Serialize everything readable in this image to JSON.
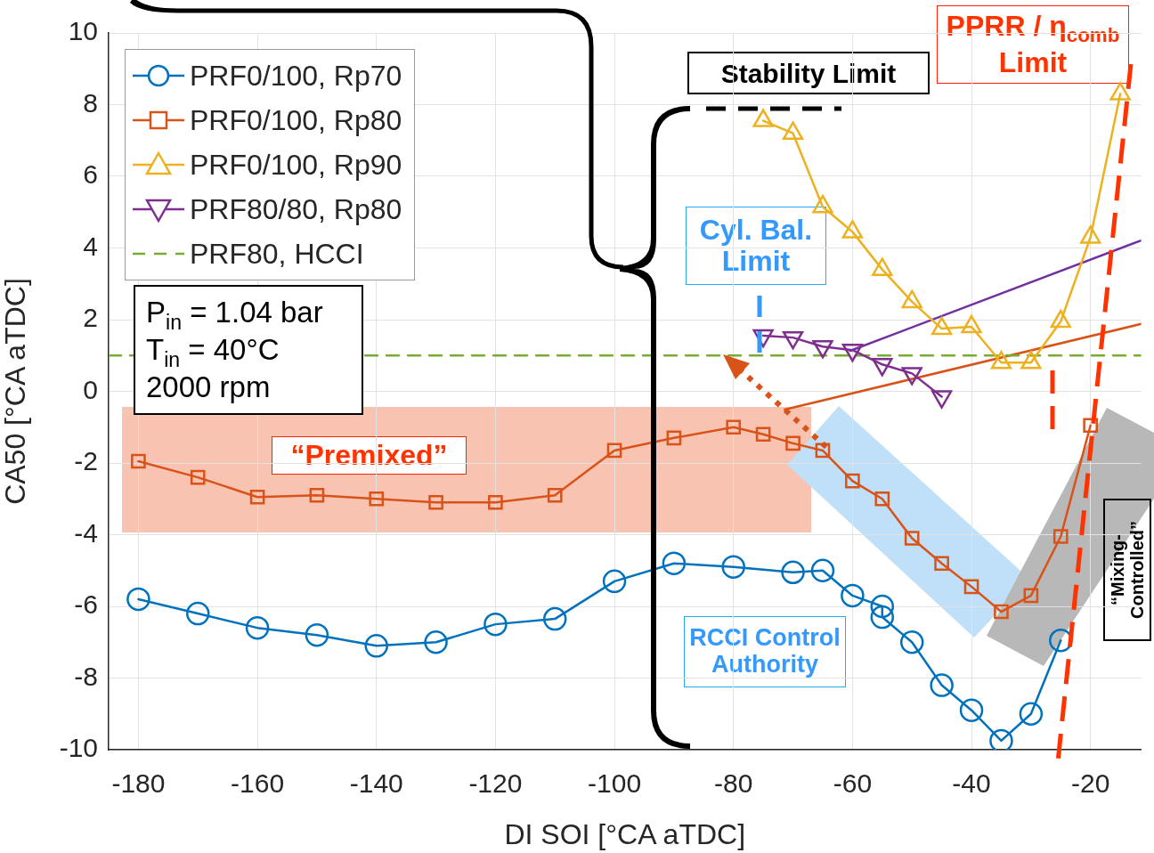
{
  "chart_data": {
    "type": "line",
    "xlabel": "DI SOI [°CA aTDC]",
    "ylabel": "CA50 [°CA aTDC]",
    "xlim": [
      -185,
      -11.5
    ],
    "ylim": [
      -10,
      10
    ],
    "xticks": [
      -180,
      -160,
      -140,
      -120,
      -100,
      -80,
      -60,
      -40,
      -20
    ],
    "yticks": [
      -10,
      -8,
      -6,
      -4,
      -2,
      0,
      2,
      4,
      6,
      8,
      10
    ],
    "grid": true,
    "legend": "top left",
    "series": [
      {
        "name": "PRF0/100, Rp70",
        "color": "#0072bd",
        "marker": "circle",
        "x": [
          -180,
          -170,
          -160,
          -150,
          -140,
          -130,
          -120,
          -110,
          -100,
          -90,
          -80,
          -70,
          -65,
          -60,
          -55,
          -55,
          -50,
          -45,
          -40,
          -35,
          -30,
          -25
        ],
        "values": [
          -5.8,
          -6.2,
          -6.6,
          -6.8,
          -7.1,
          -7.0,
          -6.5,
          -6.35,
          -5.3,
          -4.8,
          -4.9,
          -5.05,
          -5.0,
          -5.7,
          -6.0,
          -6.3,
          -7.0,
          -8.2,
          -8.9,
          -9.75,
          -9.0,
          -6.95
        ]
      },
      {
        "name": "PRF0/100, Rp80",
        "color": "#d95319",
        "marker": "square",
        "x": [
          -180,
          -170,
          -160,
          -150,
          -140,
          -130,
          -120,
          -110,
          -100,
          -90,
          -80,
          -75,
          -70,
          -65,
          -60,
          -55,
          -50,
          -45,
          -40,
          -35,
          -30,
          -25,
          -20
        ],
        "values": [
          -1.95,
          -2.4,
          -2.95,
          -2.9,
          -3.0,
          -3.1,
          -3.1,
          -2.9,
          -1.65,
          -1.3,
          -1.0,
          -1.2,
          -1.45,
          -1.65,
          -2.5,
          -3.0,
          -4.1,
          -4.8,
          -5.45,
          -6.15,
          -5.7,
          -4.05,
          -0.95
        ]
      },
      {
        "name": "PRF0/100, Rp90",
        "color": "#edb120",
        "marker": "triangle",
        "x": [
          -75,
          -70,
          -65,
          -60,
          -55,
          -50,
          -45,
          -40,
          -35,
          -30,
          -25,
          -20,
          -15
        ],
        "values": [
          7.55,
          7.2,
          5.15,
          4.45,
          3.4,
          2.5,
          1.75,
          1.8,
          0.8,
          0.8,
          1.95,
          4.3,
          8.3
        ]
      },
      {
        "name": "PRF80/80, Rp80",
        "color": "#7e2f8e",
        "marker": "triangle-down",
        "x": [
          -75,
          -70,
          -65,
          -60,
          -55,
          -50,
          -45
        ],
        "values": [
          1.55,
          1.5,
          1.25,
          1.15,
          0.75,
          0.5,
          -0.15
        ]
      },
      {
        "name": "PRF80, HCCI",
        "color": "#77ac30",
        "marker": "none",
        "line_style": "dashed",
        "x": [
          -185,
          -11.5
        ],
        "values": [
          1,
          1
        ]
      },
      {
        "color": "#7030a0",
        "marker": "none",
        "x": [
          -60.4,
          -11.5
        ],
        "values": [
          1.13,
          4.21
        ]
      },
      {
        "color": "#d95319",
        "marker": "none",
        "x": [
          -71.4,
          -11.5
        ],
        "values": [
          -0.51,
          1.88
        ]
      }
    ],
    "annotations": [
      "Stability Limit",
      "PPRR / η$_{comb}$ Limit",
      "Cyl. Bal. Limit",
      "RCCI Control Authority",
      "“Mixing-Controlled”",
      "“Premixed”",
      "P$_{in}$ = 1.04 bar\nT$_{in}$ = 40°C\n2000 rpm"
    ]
  }
}
